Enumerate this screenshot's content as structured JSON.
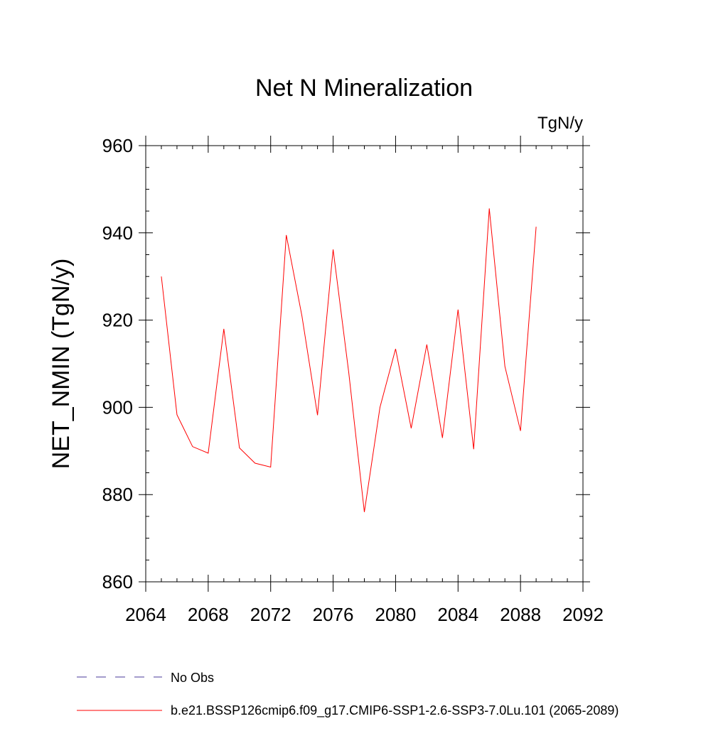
{
  "chart_data": {
    "type": "line",
    "title": "Net N Mineralization",
    "units": "TgN/y",
    "xlabel": "",
    "ylabel": "NET_NMIN  (TgN/y)",
    "xlim": [
      2064,
      2092
    ],
    "ylim": [
      860,
      960
    ],
    "x_ticks": [
      2064,
      2068,
      2072,
      2076,
      2080,
      2084,
      2088,
      2092
    ],
    "y_ticks": [
      860,
      880,
      900,
      920,
      940,
      960
    ],
    "x_minor_step": 1,
    "y_minor_step": 5,
    "series": [
      {
        "name": "b.e21.BSSP126cmip6.f09_g17.CMIP6-SSP1-2.6-SSP3-7.0Lu.101 (2065-2089)",
        "color": "#ff0000",
        "x": [
          2065,
          2066,
          2067,
          2068,
          2069,
          2070,
          2071,
          2072,
          2073,
          2074,
          2075,
          2076,
          2077,
          2078,
          2079,
          2080,
          2081,
          2082,
          2083,
          2084,
          2085,
          2086,
          2087,
          2088,
          2089
        ],
        "y": [
          930.0,
          898.3,
          891.0,
          889.5,
          918.0,
          890.7,
          887.2,
          886.3,
          939.5,
          921.0,
          898.2,
          936.2,
          908.0,
          876.0,
          900.0,
          913.4,
          895.2,
          914.4,
          893.0,
          922.4,
          890.4,
          945.6,
          909.4,
          894.6,
          941.4
        ]
      }
    ],
    "legend": [
      {
        "label": "No Obs",
        "color": "#4a3a9a",
        "style": "dashed"
      },
      {
        "label": "b.e21.BSSP126cmip6.f09_g17.CMIP6-SSP1-2.6-SSP3-7.0Lu.101 (2065-2089)",
        "color": "#ff0000",
        "style": "solid"
      }
    ],
    "legend_position": "bottom"
  }
}
